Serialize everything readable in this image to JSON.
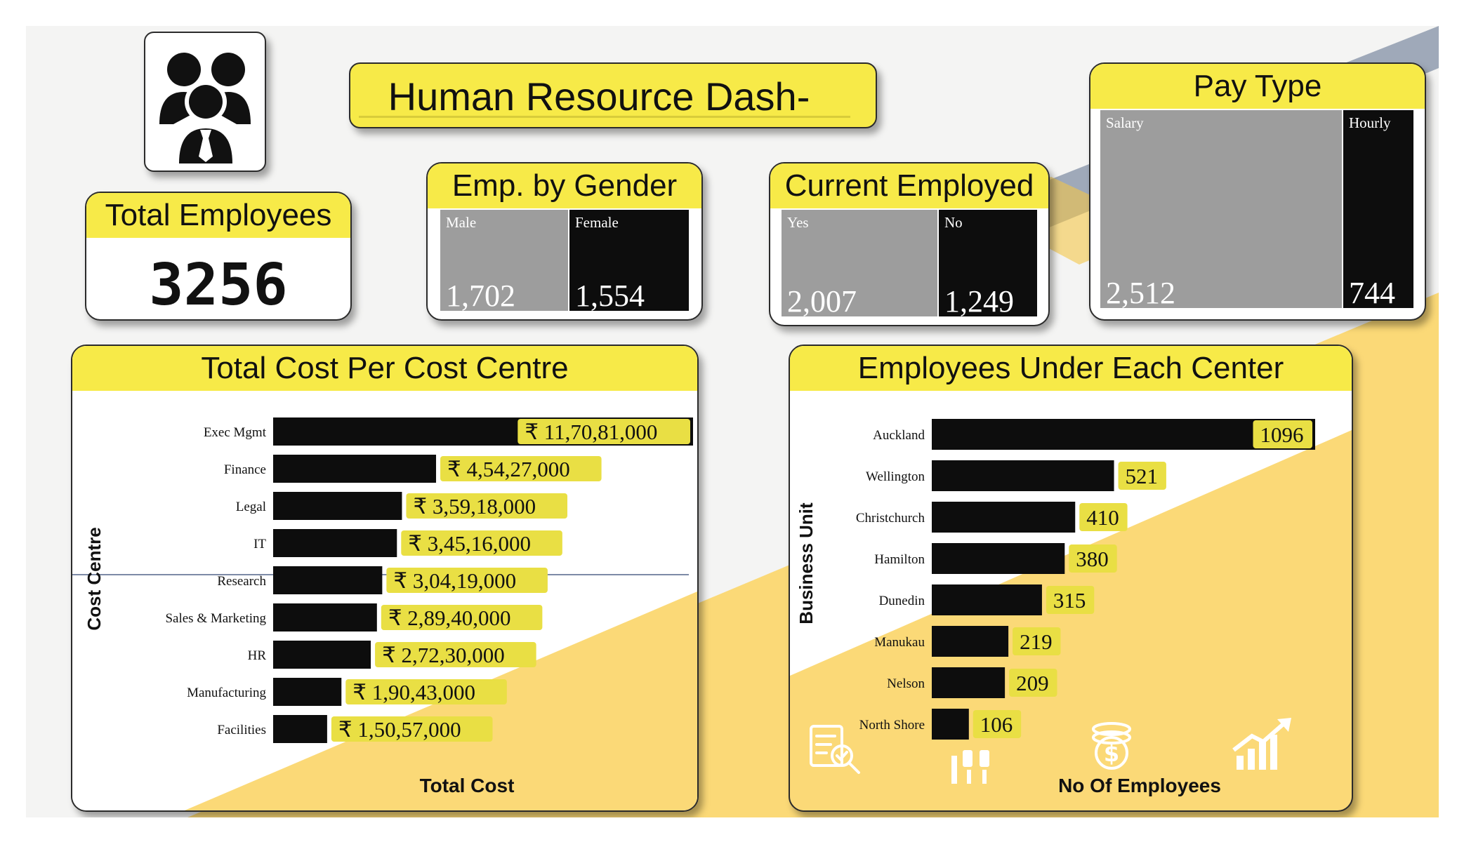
{
  "header": {
    "title": "Human Resource Dash-Board"
  },
  "icons": {
    "logo": "people-group-icon",
    "decor": [
      "checklist-search-icon",
      "hand-coins-icon",
      "dollar-coin-icon",
      "growth-chart-icon"
    ]
  },
  "colors": {
    "accent": "#f7ea48",
    "bar": "#0d0d0d",
    "gray_tile": "#9d9d9d",
    "label_bg": "#e9df44"
  },
  "kpi": {
    "title": "Total Employees",
    "value": "3256"
  },
  "chart_data": [
    {
      "type": "treemap",
      "title": "Emp. by Gender",
      "categories": [
        "Male",
        "Female"
      ],
      "values": [
        1702,
        1554
      ],
      "value_labels": [
        "1,702",
        "1,554"
      ]
    },
    {
      "type": "treemap",
      "title": "Current Employed",
      "categories": [
        "Yes",
        "No"
      ],
      "values": [
        2007,
        1249
      ],
      "value_labels": [
        "2,007",
        "1,249"
      ]
    },
    {
      "type": "treemap",
      "title": "Pay Type",
      "categories": [
        "Salary",
        "Hourly"
      ],
      "values": [
        2512,
        744
      ],
      "value_labels": [
        "2,512",
        "744"
      ]
    },
    {
      "type": "bar",
      "orientation": "horizontal",
      "title": "Total Cost Per Cost Centre",
      "xlabel": "Total Cost",
      "ylabel": "Cost Centre",
      "categories": [
        "Exec Mgmt",
        "Finance",
        "Legal",
        "IT",
        "Research",
        "Sales & Marketing",
        "HR",
        "Manufacturing",
        "Facilities"
      ],
      "values": [
        117081000,
        45427000,
        35918000,
        34516000,
        30419000,
        28940000,
        27230000,
        19043000,
        15057000
      ],
      "value_labels": [
        "₹ 11,70,81,000",
        "₹ 4,54,27,000",
        "₹ 3,59,18,000",
        "₹ 3,45,16,000",
        "₹ 3,04,19,000",
        "₹ 2,89,40,000",
        "₹ 2,72,30,000",
        "₹ 1,90,43,000",
        "₹ 1,50,57,000"
      ]
    },
    {
      "type": "bar",
      "orientation": "horizontal",
      "title": "Employees Under Each Center",
      "xlabel": "No Of Employees",
      "ylabel": "Business Unit",
      "categories": [
        "Auckland",
        "Wellington",
        "Christchurch",
        "Hamilton",
        "Dunedin",
        "Manukau",
        "Nelson",
        "North Shore"
      ],
      "values": [
        1096,
        521,
        410,
        380,
        315,
        219,
        209,
        106
      ],
      "value_labels": [
        "1096",
        "521",
        "410",
        "380",
        "315",
        "219",
        "209",
        "106"
      ]
    }
  ]
}
